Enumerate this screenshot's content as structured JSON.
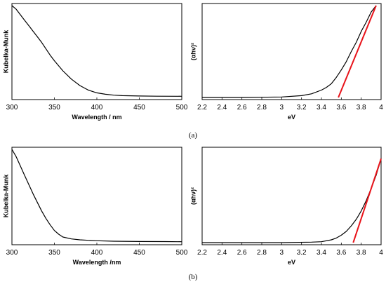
{
  "panel_labels": [
    "(a)",
    "(b)"
  ],
  "chart_data": [
    {
      "panel": "(a)",
      "type": "line",
      "xlabel": "Wavelength / nm",
      "ylabel": "Kubelka-Munk",
      "xlim": [
        300,
        500
      ],
      "xticks": [
        "300",
        "350",
        "400",
        "450",
        "500"
      ],
      "series": [
        {
          "x": [
            300,
            305,
            310,
            315,
            320,
            325,
            330,
            335,
            340,
            345,
            350,
            360,
            370,
            380,
            390,
            400,
            410,
            420,
            430,
            450,
            470,
            500
          ],
          "y": [
            1.0,
            0.96,
            0.9,
            0.84,
            0.78,
            0.72,
            0.66,
            0.6,
            0.53,
            0.46,
            0.4,
            0.29,
            0.2,
            0.13,
            0.08,
            0.05,
            0.035,
            0.025,
            0.02,
            0.016,
            0.014,
            0.013
          ]
        }
      ]
    },
    {
      "panel": "(a)",
      "type": "line",
      "xlabel": "eV",
      "ylabel": "(αhν)²",
      "xlim": [
        2.2,
        4.0
      ],
      "xticks": [
        "2.2",
        "2.4",
        "2.6",
        "2.8",
        "3",
        "3.2",
        "3.4",
        "3.6",
        "3.8",
        "4"
      ],
      "series": [
        {
          "x": [
            2.2,
            2.6,
            3.0,
            3.2,
            3.3,
            3.4,
            3.45,
            3.5,
            3.55,
            3.6,
            3.65,
            3.7,
            3.75,
            3.8,
            3.85,
            3.9,
            3.95
          ],
          "y": [
            0.0,
            0.0,
            0.005,
            0.02,
            0.04,
            0.08,
            0.11,
            0.15,
            0.22,
            0.3,
            0.39,
            0.5,
            0.6,
            0.72,
            0.82,
            0.93,
            1.0
          ]
        },
        {
          "x": [
            3.57,
            3.95
          ],
          "y": [
            0.0,
            1.0
          ],
          "color": "#e8131a"
        }
      ]
    },
    {
      "panel": "(b)",
      "type": "line",
      "xlabel": "Wavelength /nm",
      "ylabel": "Kubelka-Munk",
      "xlim": [
        300,
        500
      ],
      "xticks": [
        "300",
        "350",
        "400",
        "450",
        "500"
      ],
      "series": [
        {
          "x": [
            300,
            305,
            310,
            315,
            320,
            325,
            330,
            335,
            340,
            345,
            350,
            355,
            360,
            370,
            380,
            390,
            400,
            420,
            450,
            480,
            500
          ],
          "y": [
            1.0,
            0.92,
            0.82,
            0.72,
            0.62,
            0.52,
            0.43,
            0.34,
            0.26,
            0.19,
            0.13,
            0.09,
            0.06,
            0.04,
            0.03,
            0.025,
            0.02,
            0.015,
            0.012,
            0.011,
            0.01
          ]
        }
      ]
    },
    {
      "panel": "(b)",
      "type": "line",
      "xlabel": "eV",
      "ylabel": "(αhν)²",
      "xlim": [
        2.2,
        4.0
      ],
      "xticks": [
        "2.2",
        "2.4",
        "2.6",
        "2.8",
        "3",
        "3.2",
        "3.4",
        "3.6",
        "3.8",
        "4"
      ],
      "series": [
        {
          "x": [
            2.2,
            3.0,
            3.3,
            3.4,
            3.5,
            3.55,
            3.6,
            3.65,
            3.7,
            3.75,
            3.8,
            3.85,
            3.9,
            3.95,
            4.0
          ],
          "y": [
            0.0,
            0.0,
            0.005,
            0.01,
            0.03,
            0.05,
            0.08,
            0.12,
            0.18,
            0.25,
            0.34,
            0.45,
            0.58,
            0.72,
            0.9
          ]
        },
        {
          "x": [
            3.72,
            4.0
          ],
          "y": [
            0.0,
            0.9
          ],
          "color": "#e8131a"
        }
      ]
    }
  ]
}
